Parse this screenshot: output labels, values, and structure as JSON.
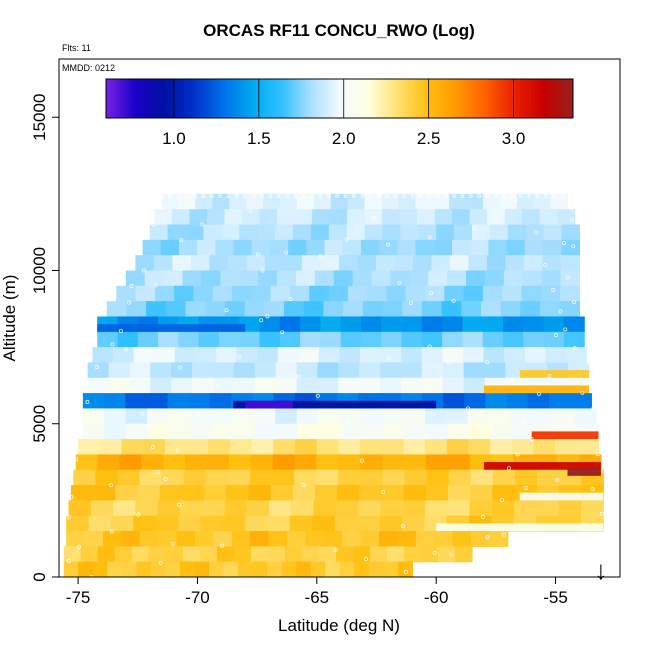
{
  "chart_data": {
    "type": "heatmap",
    "title": "ORCAS RF11 CONCU_RWO (Log)",
    "flights_label": "Flts: 11",
    "date_label": "MMDD: 0212",
    "xlabel": "Latitude (deg N)",
    "ylabel": "Altitude (m)",
    "xlim": [
      -75.8,
      -52.3
    ],
    "ylim": [
      0,
      16900
    ],
    "x_ticks": [
      -75,
      -70,
      -65,
      -60,
      -55
    ],
    "x_tick_labels": [
      "-75",
      "-70",
      "-65",
      "-60",
      "-55"
    ],
    "y_ticks": [
      0,
      5000,
      10000,
      15000
    ],
    "y_tick_labels": [
      "0",
      "5000",
      "10000",
      "15000"
    ],
    "colorbar": {
      "range": [
        0.6,
        3.35
      ],
      "ticks": [
        1.0,
        1.5,
        2.0,
        2.5,
        3.0
      ],
      "tick_labels": [
        "1.0",
        "1.5",
        "2.0",
        "2.5",
        "3.0"
      ],
      "colors": [
        "#7b22e6",
        "#1a00c8",
        "#0010a0",
        "#0030c8",
        "#0070e8",
        "#00a8f0",
        "#30c0ff",
        "#a8deff",
        "#f2faff",
        "#ffffe0",
        "#ffe070",
        "#ffc010",
        "#ff9800",
        "#ff6000",
        "#e82000",
        "#c80000",
        "#962020"
      ]
    },
    "marker": {
      "symbol": "↓",
      "x": -53.1,
      "y": 0
    },
    "rows": [
      {
        "y": 12000,
        "x0": -71.5,
        "x1": -54.5,
        "v": 1.92
      },
      {
        "y": 11500,
        "x0": -71.8,
        "x1": -54.2,
        "v": 1.88
      },
      {
        "y": 11000,
        "x0": -72.0,
        "x1": -54.0,
        "v": 1.84
      },
      {
        "y": 10500,
        "x0": -72.3,
        "x1": -54.0,
        "v": 1.8
      },
      {
        "y": 10000,
        "x0": -72.6,
        "x1": -54.0,
        "v": 1.86
      },
      {
        "y": 9500,
        "x0": -73.0,
        "x1": -54.0,
        "v": 1.82
      },
      {
        "y": 9000,
        "x0": -73.4,
        "x1": -54.0,
        "v": 1.78
      },
      {
        "y": 8500,
        "x0": -73.8,
        "x1": -54.0,
        "v": 1.74
      },
      {
        "y": 8000,
        "x0": -74.2,
        "x1": -53.8,
        "v": 1.4
      },
      {
        "y": 7500,
        "x0": -74.2,
        "x1": -53.8,
        "v": 1.72
      },
      {
        "y": 7000,
        "x0": -74.4,
        "x1": -53.7,
        "v": 1.92
      },
      {
        "y": 6500,
        "x0": -74.6,
        "x1": -53.6,
        "v": 1.86
      },
      {
        "y": 6000,
        "x0": -74.6,
        "x1": -53.6,
        "v": 1.98
      },
      {
        "y": 5500,
        "x0": -74.8,
        "x1": -53.5,
        "v": 1.3
      },
      {
        "y": 5000,
        "x0": -74.8,
        "x1": -53.3,
        "v": 2.0
      },
      {
        "y": 4500,
        "x0": -74.8,
        "x1": -53.2,
        "v": 2.05
      },
      {
        "y": 4000,
        "x0": -75.0,
        "x1": -53.2,
        "v": 2.3
      },
      {
        "y": 3500,
        "x0": -75.1,
        "x1": -53.1,
        "v": 2.55
      },
      {
        "y": 3000,
        "x0": -75.2,
        "x1": -53.0,
        "v": 2.4
      },
      {
        "y": 2500,
        "x0": -75.3,
        "x1": -53.0,
        "v": 2.45
      },
      {
        "y": 2000,
        "x0": -75.4,
        "x1": -53.0,
        "v": 2.38
      },
      {
        "y": 1500,
        "x0": -75.5,
        "x1": -53.0,
        "v": 2.42
      },
      {
        "y": 1000,
        "x0": -75.5,
        "x1": -57.0,
        "v": 2.46
      },
      {
        "y": 500,
        "x0": -75.6,
        "x1": -58.5,
        "v": 2.4
      },
      {
        "y": 0,
        "x0": -75.6,
        "x1": -61.0,
        "v": 2.44
      }
    ],
    "highlights": [
      {
        "y": 5500,
        "x0": -68.5,
        "x1": -60.0,
        "v": 0.95
      },
      {
        "y": 5500,
        "x0": -68.0,
        "x1": -66.0,
        "v": 0.7
      },
      {
        "y": 3500,
        "x0": -58.0,
        "x1": -53.1,
        "v": 3.15
      },
      {
        "y": 3300,
        "x0": -54.5,
        "x1": -53.1,
        "v": 3.35
      },
      {
        "y": 4500,
        "x0": -56.0,
        "x1": -53.2,
        "v": 2.95
      },
      {
        "y": 6500,
        "x0": -56.5,
        "x1": -53.6,
        "v": 2.45
      },
      {
        "y": 6000,
        "x0": -58.0,
        "x1": -53.6,
        "v": 2.55
      },
      {
        "y": 1500,
        "x0": -60.0,
        "x1": -53.0,
        "v": 2.1
      },
      {
        "y": 2500,
        "x0": -56.5,
        "x1": -53.0,
        "v": 2.05
      },
      {
        "y": 8000,
        "x0": -74.2,
        "x1": -68.0,
        "v": 1.25
      }
    ]
  }
}
